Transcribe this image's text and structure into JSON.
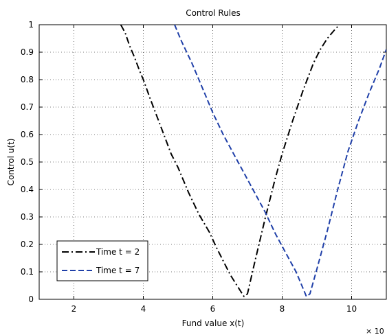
{
  "chart_data": {
    "type": "line",
    "title": "Control Rules",
    "xlabel": "Fund value x(t)",
    "ylabel": "Control u(t)",
    "x_exponent_label": "× 10",
    "xlim": [
      1.0,
      11.0
    ],
    "ylim": [
      0,
      1
    ],
    "xticks": [
      2,
      4,
      6,
      8,
      10
    ],
    "yticks": [
      0,
      0.1,
      0.2,
      0.3,
      0.4,
      0.5,
      0.6,
      0.7,
      0.8,
      0.9,
      1
    ],
    "grid": true,
    "legend_position": "bottom-left",
    "series": [
      {
        "name": "Time t = 2",
        "style": "dashdot",
        "color": "#000000",
        "x": [
          3.35,
          3.48,
          3.6,
          3.75,
          3.9,
          4.0,
          4.2,
          4.5,
          4.8,
          5.0,
          5.3,
          5.6,
          5.9,
          6.1,
          6.3,
          6.5,
          6.65,
          6.8,
          6.9,
          7.0,
          7.2,
          7.5,
          7.8,
          8.0,
          8.3,
          8.6,
          8.9,
          9.1,
          9.3,
          9.5,
          9.65
        ],
        "y": [
          1.0,
          0.97,
          0.925,
          0.88,
          0.83,
          0.8,
          0.73,
          0.63,
          0.53,
          0.48,
          0.39,
          0.31,
          0.245,
          0.19,
          0.14,
          0.09,
          0.06,
          0.03,
          0.01,
          0.02,
          0.13,
          0.29,
          0.44,
          0.53,
          0.65,
          0.76,
          0.86,
          0.91,
          0.95,
          0.98,
          1.0
        ]
      },
      {
        "name": "Time t = 7",
        "style": "dashed",
        "color": "#1f3fa8",
        "x": [
          4.9,
          5.1,
          5.4,
          5.7,
          6.0,
          6.3,
          6.6,
          6.9,
          7.2,
          7.5,
          7.8,
          8.1,
          8.4,
          8.6,
          8.7,
          8.8,
          9.0,
          9.3,
          9.6,
          9.9,
          10.2,
          10.5,
          10.8,
          11.0
        ],
        "y": [
          1.0,
          0.94,
          0.86,
          0.77,
          0.68,
          0.6,
          0.53,
          0.46,
          0.39,
          0.32,
          0.24,
          0.17,
          0.1,
          0.04,
          0.01,
          0.02,
          0.11,
          0.25,
          0.4,
          0.54,
          0.65,
          0.75,
          0.84,
          0.91
        ]
      }
    ]
  }
}
